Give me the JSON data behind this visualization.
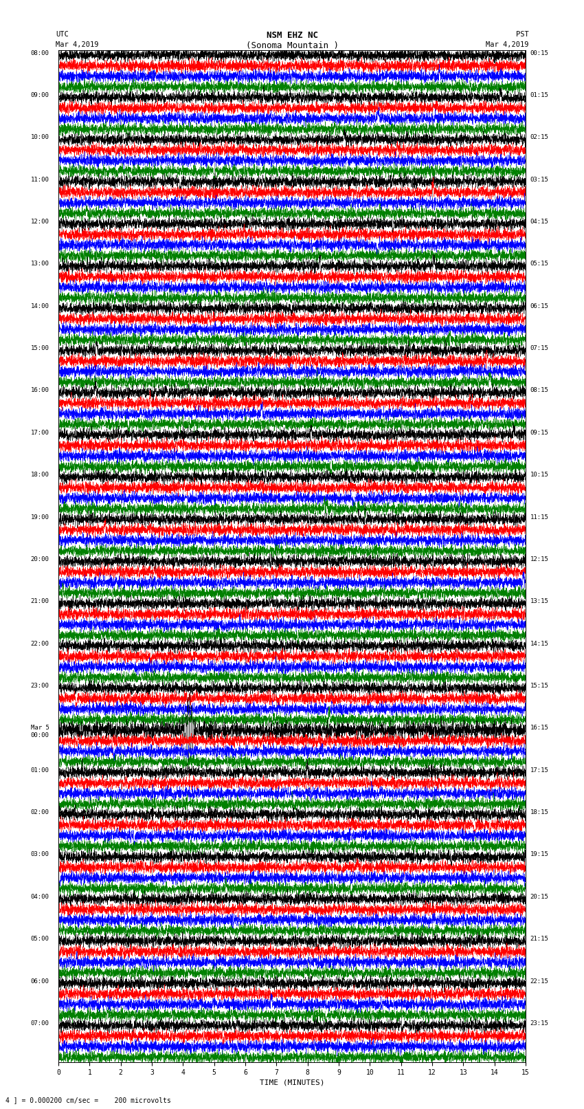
{
  "title_line1": "NSM EHZ NC",
  "title_line2": "(Sonoma Mountain )",
  "title_line3": "I = 0.000200 cm/sec",
  "left_header_line1": "UTC",
  "left_header_line2": "Mar 4,2019",
  "right_header_line1": "PST",
  "right_header_line2": "Mar 4,2019",
  "num_rows": 24,
  "traces_per_row": 4,
  "row_colors": [
    "black",
    "red",
    "blue",
    "green"
  ],
  "x_label": "TIME (MINUTES)",
  "x_min": 0,
  "x_max": 15,
  "x_ticks": [
    0,
    1,
    2,
    3,
    4,
    5,
    6,
    7,
    8,
    9,
    10,
    11,
    12,
    13,
    14,
    15
  ],
  "bottom_note": "4 ] = 0.000200 cm/sec =    200 microvolts",
  "noise_scale": 0.25,
  "special_row": 16,
  "special_trace": 0,
  "special_noise_scale": 1.2,
  "bg_color": "white",
  "fig_width": 8.5,
  "fig_height": 16.13,
  "dpi": 100,
  "left_label_utc_times": [
    "08:00",
    "09:00",
    "10:00",
    "11:00",
    "12:00",
    "13:00",
    "14:00",
    "15:00",
    "16:00",
    "17:00",
    "18:00",
    "19:00",
    "20:00",
    "21:00",
    "22:00",
    "23:00",
    "Mar 5\n00:00",
    "01:00",
    "02:00",
    "03:00",
    "04:00",
    "05:00",
    "06:00",
    "07:00"
  ],
  "right_label_pst_times": [
    "00:15",
    "01:15",
    "02:15",
    "03:15",
    "04:15",
    "05:15",
    "06:15",
    "07:15",
    "08:15",
    "09:15",
    "10:15",
    "11:15",
    "12:15",
    "13:15",
    "14:15",
    "15:15",
    "16:15",
    "17:15",
    "18:15",
    "19:15",
    "20:15",
    "21:15",
    "22:15",
    "23:15"
  ]
}
